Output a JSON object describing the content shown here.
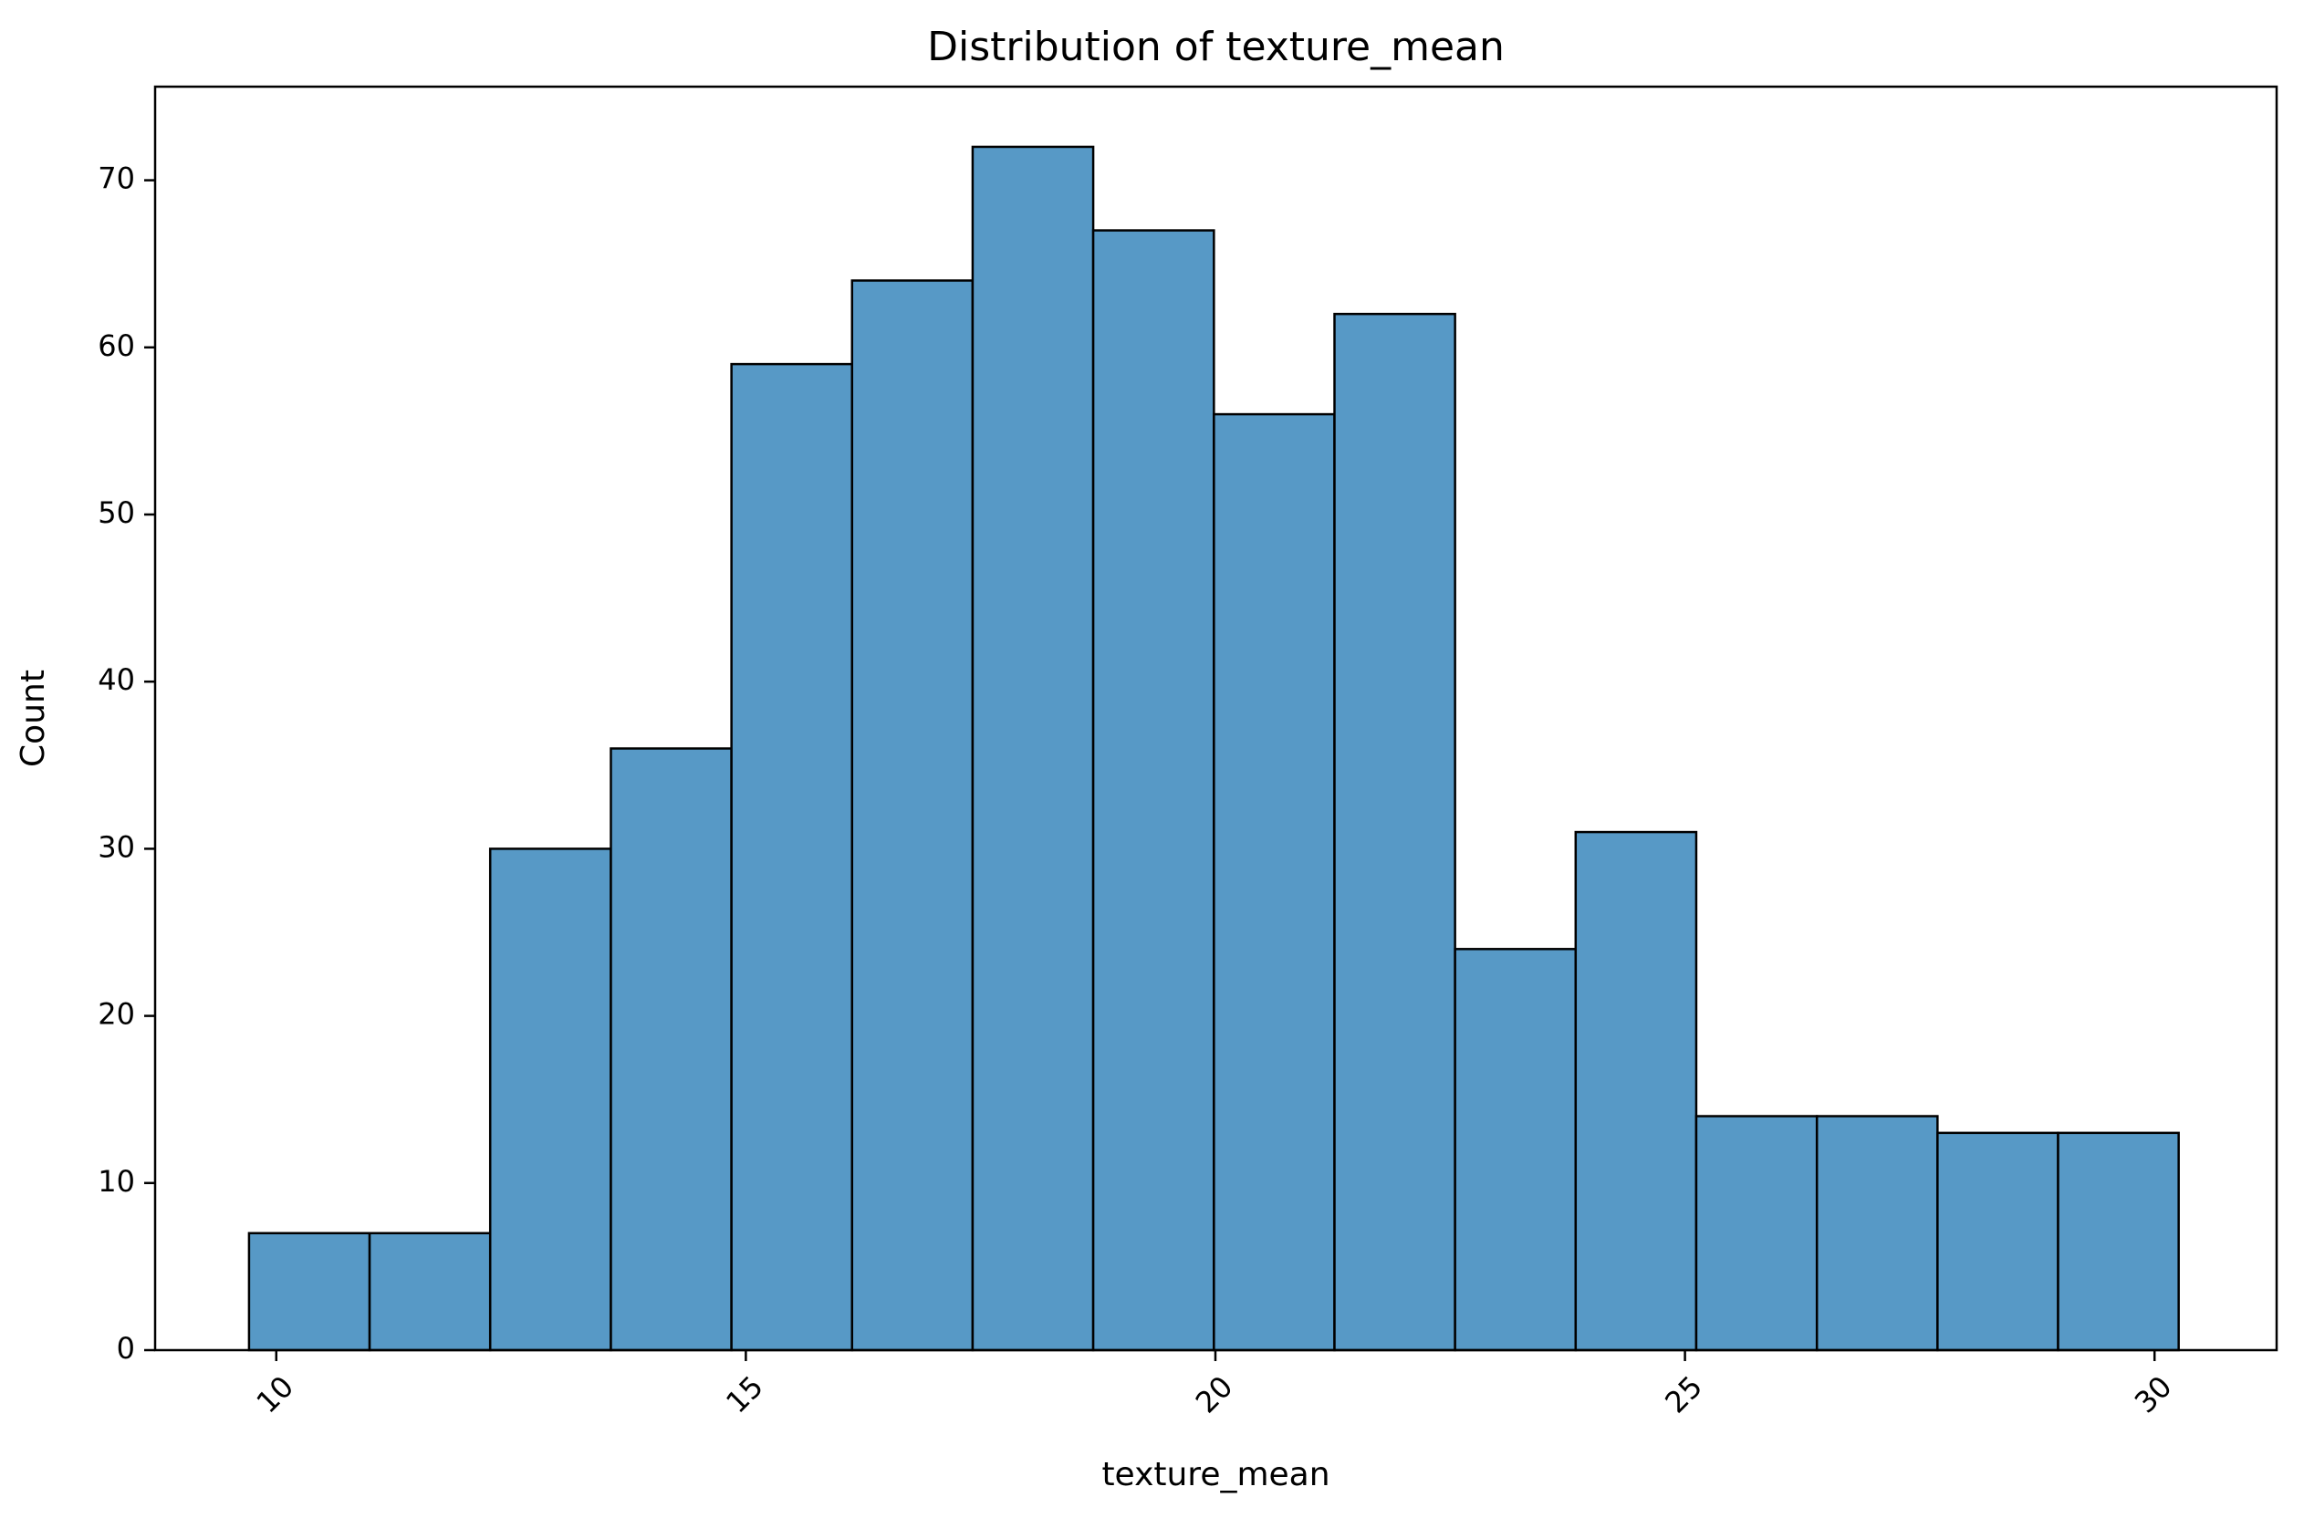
{
  "chart_data": {
    "type": "bar",
    "subtype": "histogram",
    "title": "Distribution of texture_mean",
    "xlabel": "texture_mean",
    "ylabel": "Count",
    "xlim": [
      8.71,
      31.3
    ],
    "ylim": [
      0,
      75.6
    ],
    "x_ticks": [
      10,
      15,
      20,
      25,
      30
    ],
    "y_ticks": [
      0,
      10,
      20,
      30,
      40,
      50,
      60,
      70
    ],
    "x_tick_rotation": -45,
    "grid": false,
    "bin_edges": [
      9.71,
      10.994,
      12.278,
      13.563,
      14.847,
      16.131,
      17.415,
      18.699,
      19.984,
      21.268,
      22.552,
      23.836,
      25.12,
      26.405,
      27.689,
      28.973,
      30.257
    ],
    "values": [
      7,
      7,
      30,
      36,
      59,
      64,
      72,
      67,
      56,
      62,
      24,
      31,
      14,
      14,
      13,
      13
    ],
    "bar_color": "#5799c6",
    "edge_color": "#000000"
  }
}
